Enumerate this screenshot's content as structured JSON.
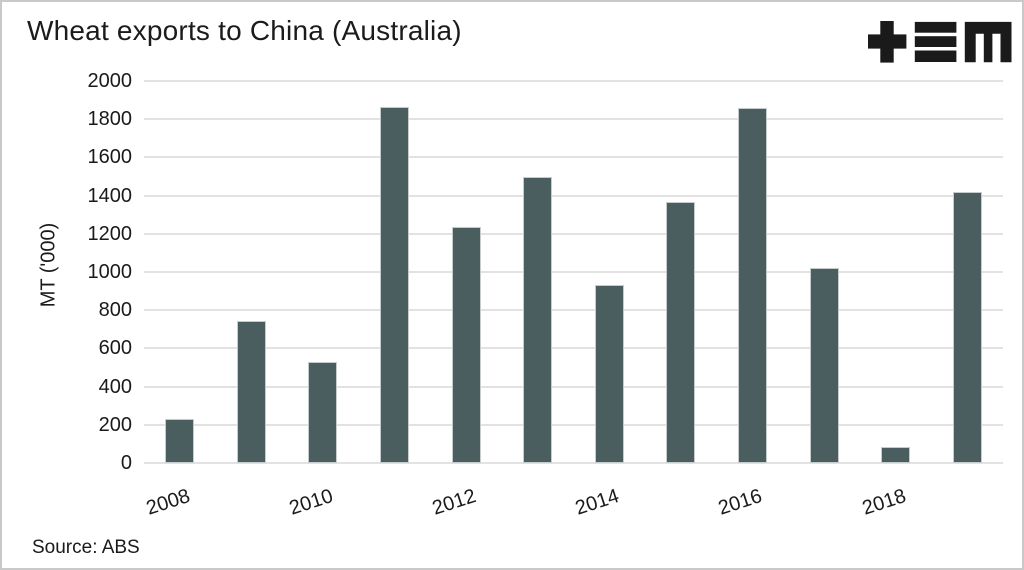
{
  "header": {
    "title": "Wheat exports to China (Australia)"
  },
  "logo": {
    "name": "tem-logo",
    "color": "#1a1a1a"
  },
  "footer": {
    "source": "Source: ABS"
  },
  "chart_data": {
    "type": "bar",
    "title": "Wheat exports to China (Australia)",
    "categories": [
      "2008",
      "2009",
      "2010",
      "2011",
      "2012",
      "2013",
      "2014",
      "2015",
      "2016",
      "2017",
      "2018",
      "2019"
    ],
    "values": [
      230,
      745,
      530,
      1865,
      1235,
      1495,
      930,
      1365,
      1860,
      1020,
      85,
      1420
    ],
    "x_tick_labels": [
      "2008",
      "2010",
      "2012",
      "2014",
      "2016",
      "2018"
    ],
    "xlabel": "",
    "ylabel": "MT ('000)",
    "ylim": [
      0,
      2000
    ],
    "ytick_step": 200,
    "grid": "horizontal",
    "legend": "none",
    "bar_color": "#4a5e5f",
    "gridline_color": "#e2e2e2",
    "source": "Source: ABS"
  }
}
